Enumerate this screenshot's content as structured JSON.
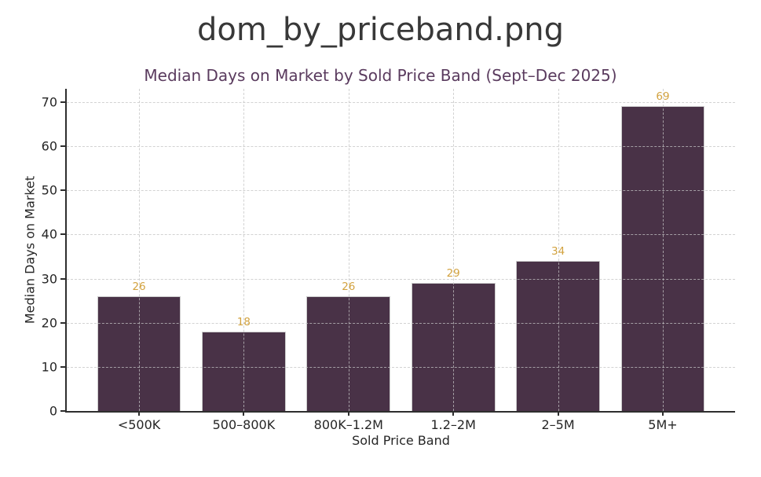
{
  "figure": {
    "title": "dom_by_priceband.png"
  },
  "chart_data": {
    "type": "bar",
    "title": "Median Days on Market by Sold Price Band (Sept–Dec 2025)",
    "categories": [
      "<500K",
      "500–800K",
      "800K–1.2M",
      "1.2–2M",
      "2–5M",
      "5M+"
    ],
    "values": [
      26,
      18,
      26,
      29,
      34,
      69
    ],
    "xlabel": "Sold Price Band",
    "ylabel": "Median Days on Market",
    "ylim": [
      0,
      73
    ],
    "yticks": [
      0,
      10,
      20,
      30,
      40,
      50,
      60,
      70
    ],
    "grid": "both, dashed, drawn above bars",
    "legend": "none",
    "colors": {
      "bar_fill": "#493247",
      "bar_edge": "#cccccc",
      "value_label": "#d2a23f",
      "chart_title": "#5a3b5e",
      "figure_title": "#383838",
      "axis_text": "#262626",
      "gridline": "#c3c3c3"
    }
  }
}
